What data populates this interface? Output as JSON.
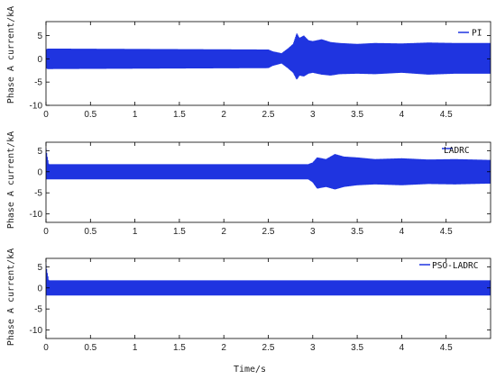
{
  "colors": {
    "series": "#1f34e0",
    "axes": "#000000",
    "background": "#ffffff"
  },
  "chart_data": [
    {
      "type": "line",
      "legend": "PI",
      "legend_position": "top-right",
      "xlabel": "",
      "ylabel": "Phase A current/kA",
      "xlim": [
        0,
        5
      ],
      "ylim": [
        -10,
        8
      ],
      "yticks": [
        -10,
        -5,
        0,
        5
      ],
      "xticks": [
        0,
        0.5,
        1,
        1.5,
        2,
        2.5,
        3,
        3.5,
        4,
        4.5
      ],
      "xtick_labels": [
        "0",
        "0.5",
        "1",
        "1.5",
        "2",
        "2.5",
        "3",
        "3.5",
        "4",
        "4.5"
      ],
      "envelope": {
        "x": [
          0.0,
          0.02,
          2.5,
          2.55,
          2.65,
          2.72,
          2.78,
          2.82,
          2.85,
          2.9,
          2.95,
          3.0,
          3.1,
          3.2,
          3.3,
          3.5,
          3.7,
          4.0,
          4.3,
          4.6,
          5.0
        ],
        "upper": [
          2.0,
          2.2,
          2.0,
          1.6,
          1.2,
          2.2,
          3.2,
          5.5,
          4.5,
          5.0,
          4.0,
          3.8,
          4.2,
          3.6,
          3.4,
          3.2,
          3.4,
          3.3,
          3.5,
          3.4,
          3.4
        ],
        "lower": [
          -2.0,
          -2.2,
          -2.0,
          -1.5,
          -1.0,
          -2.0,
          -3.0,
          -4.5,
          -3.6,
          -3.8,
          -3.2,
          -3.0,
          -3.4,
          -3.6,
          -3.3,
          -3.2,
          -3.3,
          -3.0,
          -3.4,
          -3.2,
          -3.2
        ]
      }
    },
    {
      "type": "line",
      "legend": "LADRC",
      "legend_position": "top-right",
      "xlabel": "",
      "ylabel": "Phase A current/kA",
      "xlim": [
        0,
        5
      ],
      "ylim": [
        -12,
        7
      ],
      "yticks": [
        -10,
        -5,
        0,
        5
      ],
      "xticks": [
        0,
        0.5,
        1,
        1.5,
        2,
        2.5,
        3,
        3.5,
        4,
        4.5
      ],
      "xtick_labels": [
        "0",
        "0.5",
        "1",
        "1.5",
        "2",
        "2.5",
        "3",
        "3.5",
        "4",
        "4.5"
      ],
      "envelope": {
        "x": [
          0.0,
          0.01,
          0.03,
          2.95,
          3.0,
          3.05,
          3.15,
          3.25,
          3.35,
          3.5,
          3.7,
          4.0,
          4.3,
          4.6,
          5.0
        ],
        "upper": [
          5.5,
          4.0,
          1.8,
          1.8,
          2.2,
          3.4,
          3.0,
          4.2,
          3.6,
          3.4,
          3.0,
          3.2,
          2.9,
          3.0,
          2.8
        ],
        "lower": [
          -1.8,
          -1.8,
          -1.8,
          -1.8,
          -2.5,
          -4.0,
          -3.6,
          -4.2,
          -3.6,
          -3.2,
          -3.0,
          -3.2,
          -2.9,
          -3.0,
          -2.8
        ]
      }
    },
    {
      "type": "line",
      "legend": "PSO-LADRC",
      "legend_position": "top-right",
      "xlabel": "Time/s",
      "ylabel": "Phase A current/kA",
      "xlim": [
        0,
        5
      ],
      "ylim": [
        -12,
        7
      ],
      "yticks": [
        -10,
        -5,
        0,
        5
      ],
      "xticks": [
        0,
        0.5,
        1,
        1.5,
        2,
        2.5,
        3,
        3.5,
        4,
        4.5
      ],
      "xtick_labels": [
        "0",
        "0.5",
        "1",
        "1.5",
        "2",
        "2.5",
        "3",
        "3.5",
        "4",
        "4.5"
      ],
      "envelope": {
        "x": [
          0.0,
          0.01,
          0.03,
          5.0
        ],
        "upper": [
          5.5,
          4.0,
          1.8,
          1.8
        ],
        "lower": [
          -1.8,
          -1.8,
          -1.8,
          -1.8
        ]
      }
    }
  ]
}
